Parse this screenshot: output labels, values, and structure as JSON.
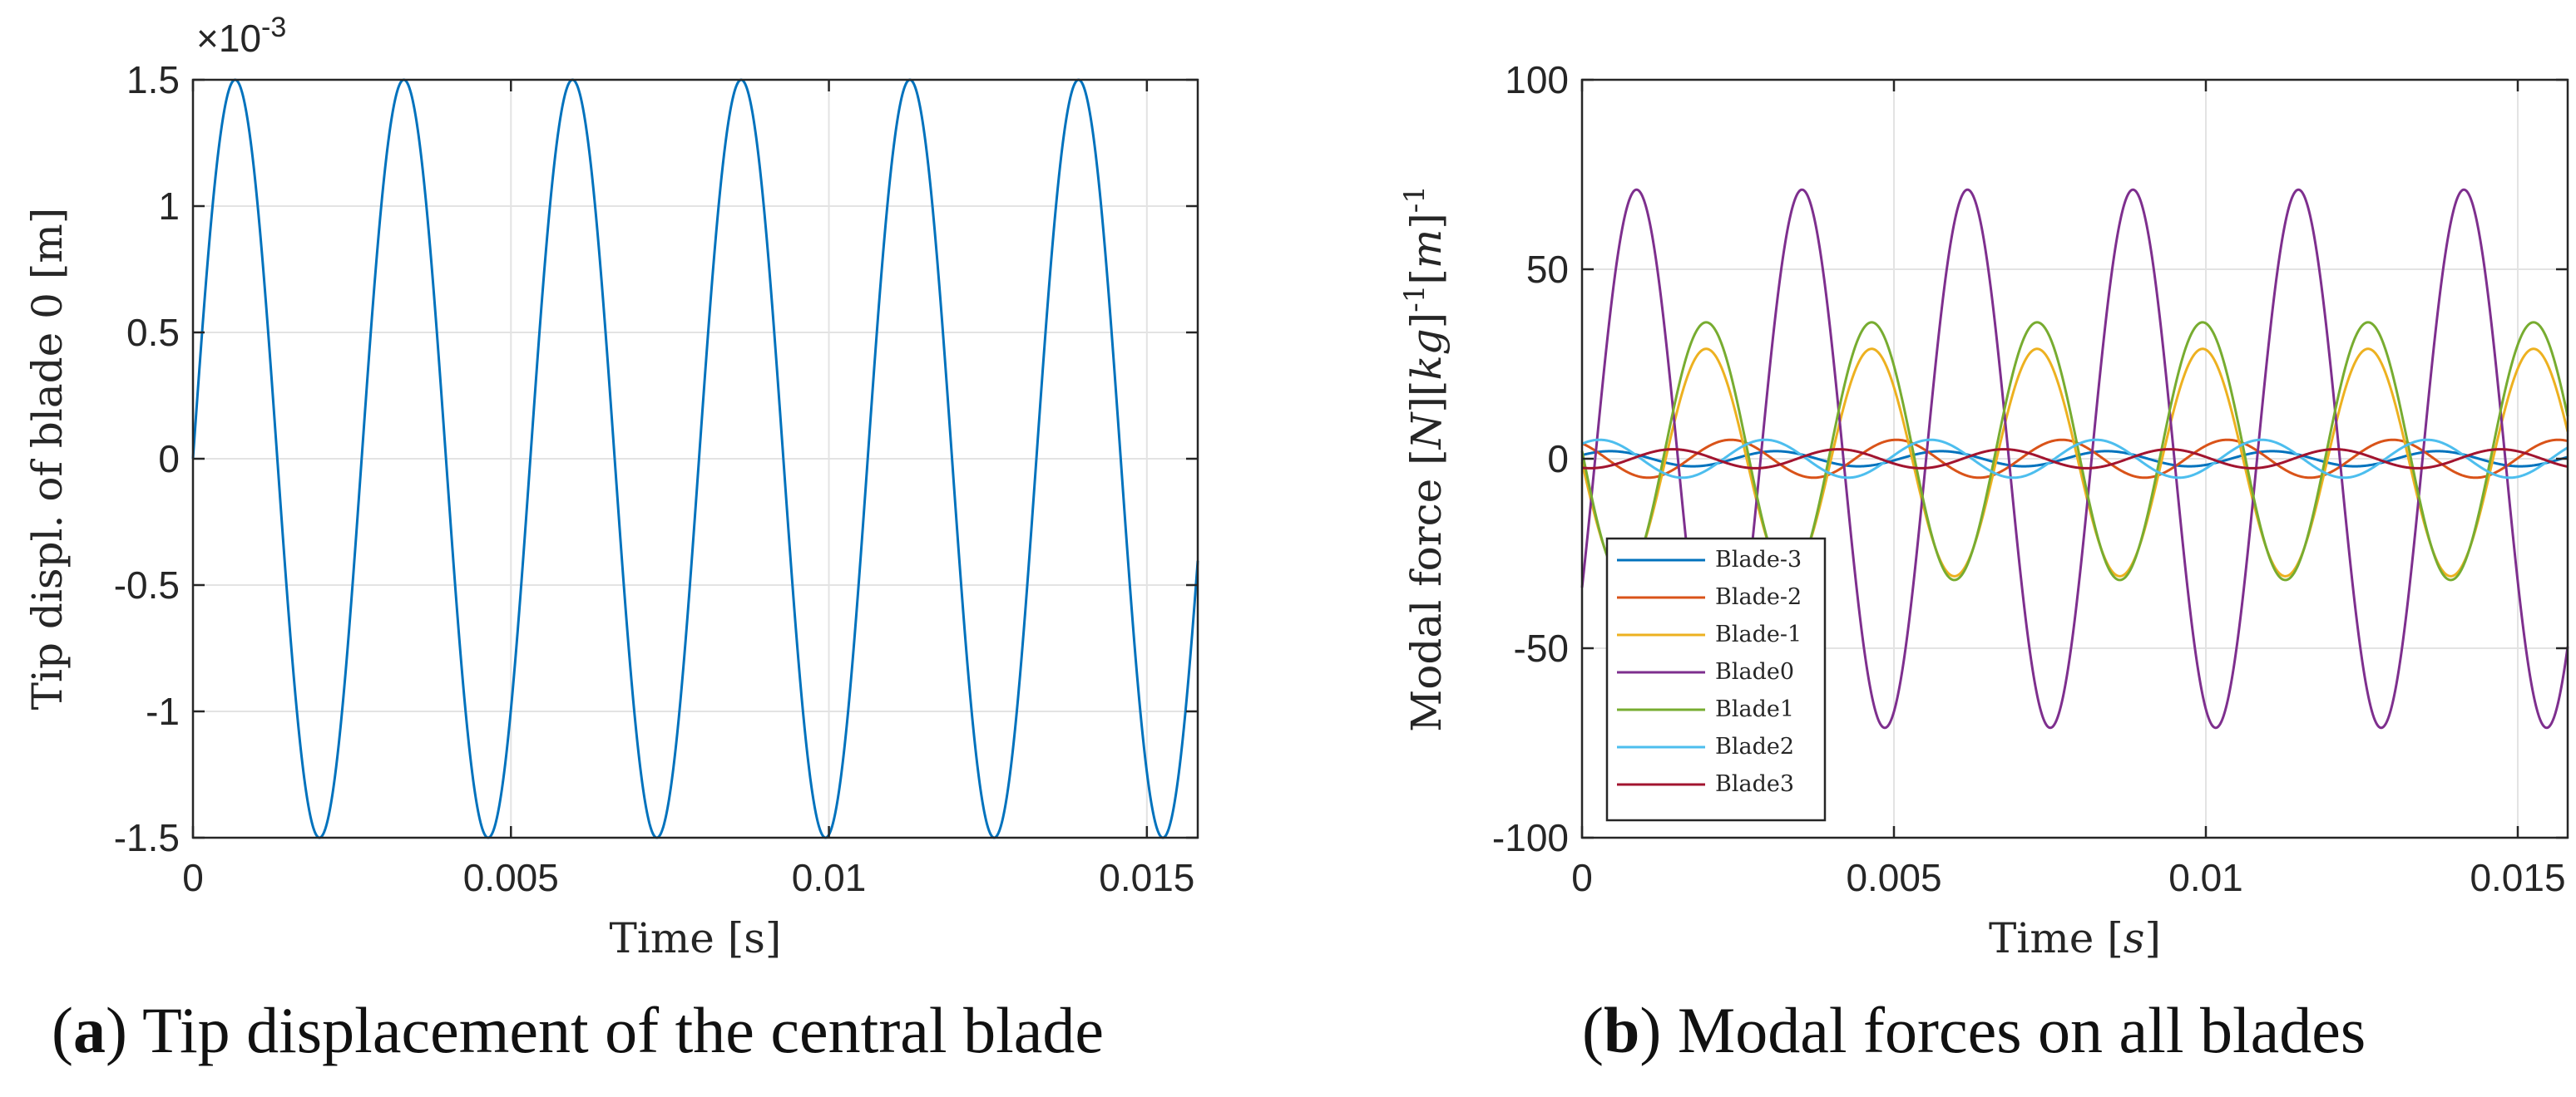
{
  "captions": {
    "a": {
      "letter": "a",
      "text": "Tip displacement of the central blade"
    },
    "b": {
      "letter": "b",
      "text": "Modal forces on all blades"
    }
  },
  "chart_data": [
    {
      "type": "line",
      "id": "a",
      "title": "",
      "xlabel": "Time [s]",
      "ylabel": "Tip displ. of blade 0 [m]",
      "y_exponent_label": "×10",
      "y_exponent_power": "-3",
      "xlim": [
        0,
        0.0158
      ],
      "ylim": [
        -1.5,
        1.5
      ],
      "xticks": [
        0,
        0.005,
        0.01,
        0.015
      ],
      "xtick_labels": [
        "0",
        "0.005",
        "0.01",
        "0.015"
      ],
      "yticks": [
        -1.5,
        -1,
        -0.5,
        0,
        0.5,
        1,
        1.5
      ],
      "ytick_labels": [
        "-1.5",
        "-1",
        "-0.5",
        "0",
        "0.5",
        "1",
        "1.5"
      ],
      "grid": true,
      "series": [
        {
          "name": "Tip displacement",
          "color": "#0072bd",
          "amplitude": 1.5,
          "frequency_hz": 377,
          "phase": 0,
          "unit_scale": "1e-3"
        }
      ]
    },
    {
      "type": "line",
      "id": "b",
      "title": "",
      "xlabel_parts": [
        "Time [",
        "s",
        "]"
      ],
      "ylabel_parts": [
        "Modal force [",
        "N",
        "][",
        "kg",
        "]",
        "-1",
        "[",
        "m",
        "]",
        "-1"
      ],
      "xlim": [
        0,
        0.0158
      ],
      "ylim": [
        -100,
        100
      ],
      "xticks": [
        0,
        0.005,
        0.01,
        0.015
      ],
      "xtick_labels": [
        "0",
        "0.005",
        "0.01",
        "0.015"
      ],
      "yticks": [
        -100,
        -50,
        0,
        50,
        100
      ],
      "ytick_labels": [
        "-100",
        "-50",
        "0",
        "50",
        "100"
      ],
      "grid": true,
      "legend_position": "bottom-left",
      "series": [
        {
          "name": "Blade-3",
          "color": "#0072bd",
          "amplitude": 2,
          "frequency_hz": 377,
          "phase": 0.5,
          "offset": 0
        },
        {
          "name": "Blade-2",
          "color": "#d95319",
          "amplitude": 5,
          "frequency_hz": 377,
          "phase": 2.2,
          "offset": 0
        },
        {
          "name": "Blade-1",
          "color": "#edb120",
          "amplitude": 30,
          "frequency_hz": 377,
          "phase": 3.14,
          "offset": -1
        },
        {
          "name": "Blade0",
          "color": "#7e2f8e",
          "amplitude": 71,
          "frequency_hz": 377,
          "phase": -0.5,
          "offset": 0
        },
        {
          "name": "Blade1",
          "color": "#77ac30",
          "amplitude": 34,
          "frequency_hz": 377,
          "phase": 3.14,
          "offset": 2
        },
        {
          "name": "Blade2",
          "color": "#4dbeee",
          "amplitude": 5,
          "frequency_hz": 377,
          "phase": 0.9,
          "offset": 0
        },
        {
          "name": "Blade3",
          "color": "#a2142f",
          "amplitude": 2.5,
          "frequency_hz": 377,
          "phase": 4.4,
          "offset": 0
        }
      ]
    }
  ]
}
